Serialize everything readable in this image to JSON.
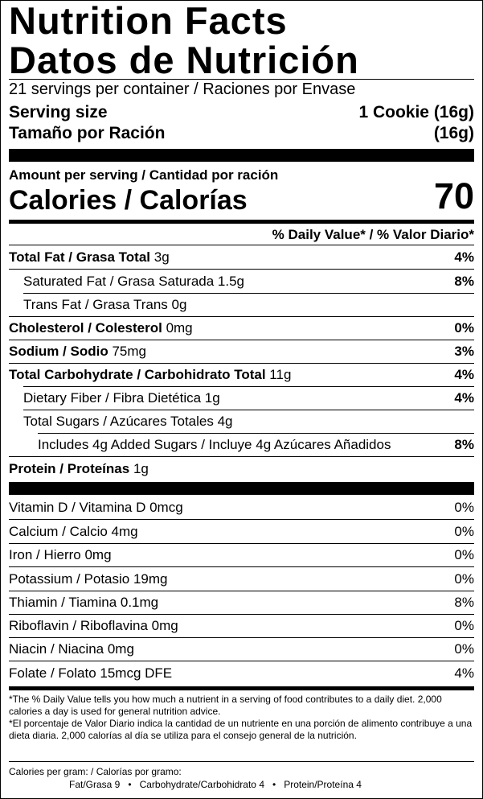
{
  "title_en": "Nutrition Facts",
  "title_es": "Datos de Nutrición",
  "servings": "21 servings per container / Raciones por Envase",
  "serving_size": {
    "label": "Serving size",
    "value": "1 Cookie (16g)"
  },
  "tamano": {
    "label": "Tamaño por Ración",
    "value": "(16g)"
  },
  "amount_per_serving": "Amount per serving / Cantidad por ración",
  "calories": {
    "label": "Calories / Calorías",
    "value": "70"
  },
  "dv_header": "% Daily Value* / % Valor Diario*",
  "nutrients": [
    {
      "name": "Total Fat / Grasa Total",
      "amount": "3g",
      "dv": "4%"
    },
    {
      "name": "Saturated Fat / Grasa Saturada 1.5g",
      "amount": "",
      "dv": "8%"
    },
    {
      "name": "Trans Fat / Grasa Trans 0g",
      "amount": "",
      "dv": ""
    },
    {
      "name": "Cholesterol / Colesterol",
      "amount": "0mg",
      "dv": "0%"
    },
    {
      "name": "Sodium / Sodio",
      "amount": "75mg",
      "dv": "3%"
    },
    {
      "name": "Total Carbohydrate / Carbohidrato Total",
      "amount": "11g",
      "dv": "4%"
    },
    {
      "name": "Dietary Fiber / Fibra Dietética 1g",
      "amount": "",
      "dv": "4%"
    },
    {
      "name": "Total Sugars / Azúcares Totales 4g",
      "amount": "",
      "dv": ""
    },
    {
      "name": "Includes 4g Added Sugars / Incluye 4g Azúcares Añadidos",
      "amount": "",
      "dv": "8%"
    },
    {
      "name": "Protein / Proteínas",
      "amount": "1g",
      "dv": ""
    }
  ],
  "vitamins": [
    {
      "label": "Vitamin D / Vitamina D 0mcg",
      "dv": "0%"
    },
    {
      "label": "Calcium / Calcio 4mg",
      "dv": "0%"
    },
    {
      "label": "Iron / Hierro 0mg",
      "dv": "0%"
    },
    {
      "label": "Potassium / Potasio 19mg",
      "dv": "0%"
    },
    {
      "label": "Thiamin / Tiamina 0.1mg",
      "dv": "8%"
    },
    {
      "label": "Riboflavin / Riboflavina 0mg",
      "dv": "0%"
    },
    {
      "label": "Niacin / Niacina 0mg",
      "dv": "0%"
    },
    {
      "label": "Folate / Folato 15mcg DFE",
      "dv": "4%"
    }
  ],
  "footnote_en": "*The % Daily Value tells you how much a nutrient in a serving of food contributes to a daily diet. 2,000 calories a day is used for general nutrition advice.",
  "footnote_es": "*El porcentaje de Valor Diario indica la cantidad de un nutriente en una porción de alimento contribuye a una dieta diaria. 2,000 calorías al día se utiliza para el consejo general de la nutrición.",
  "calories_per_gram": "Calories per gram: / Calorías por gramo:",
  "calories_per_gram_values": "Fat/Grasa 9   •   Carbohydrate/Carbohidrato 4   •   Protein/Proteína 4"
}
